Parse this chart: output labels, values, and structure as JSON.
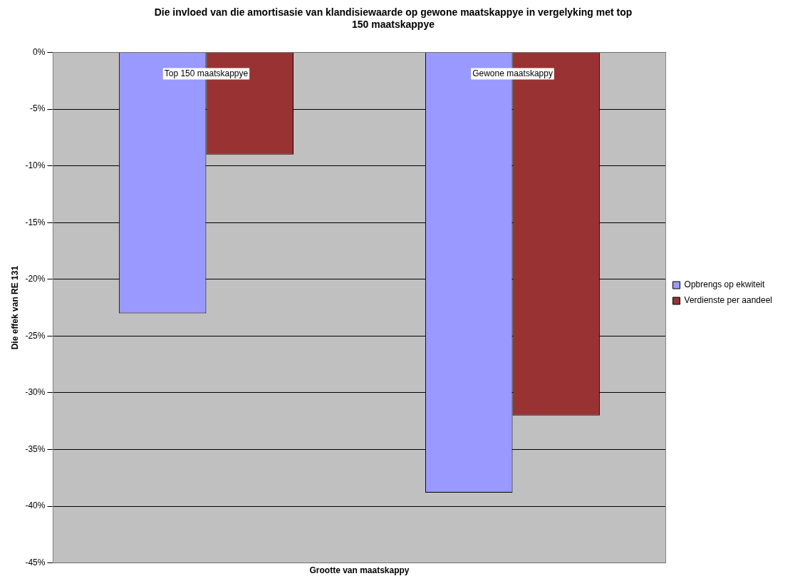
{
  "chart_data": {
    "type": "bar",
    "title": "Die invloed van die amortisasie van klandisiewaarde op gewone maatskappye in vergelyking met top 150 maatskappye",
    "xlabel": "Grootte van maatskappy",
    "ylabel": "Die effek van RE 131",
    "categories": [
      "Top 150 maatskappye",
      "Gewone maatskappy"
    ],
    "series": [
      {
        "name": "Opbrengs op ekwiteit",
        "color": "#9999ff",
        "values": [
          -23,
          -38.8
        ]
      },
      {
        "name": "Verdienste per aandeel",
        "color": "#993333",
        "values": [
          -9,
          -32
        ]
      }
    ],
    "ylim": [
      -45,
      0
    ],
    "yticks": [
      {
        "value": 0,
        "label": "0%"
      },
      {
        "value": -5,
        "label": "-5%"
      },
      {
        "value": -10,
        "label": "-10%"
      },
      {
        "value": -15,
        "label": "-15%"
      },
      {
        "value": -20,
        "label": "-20%"
      },
      {
        "value": -25,
        "label": "-25%"
      },
      {
        "value": -30,
        "label": "-30%"
      },
      {
        "value": -35,
        "label": "-35%"
      },
      {
        "value": -40,
        "label": "-40%"
      },
      {
        "value": -45,
        "label": "-45%"
      }
    ],
    "grid": "y",
    "legend": "right"
  }
}
